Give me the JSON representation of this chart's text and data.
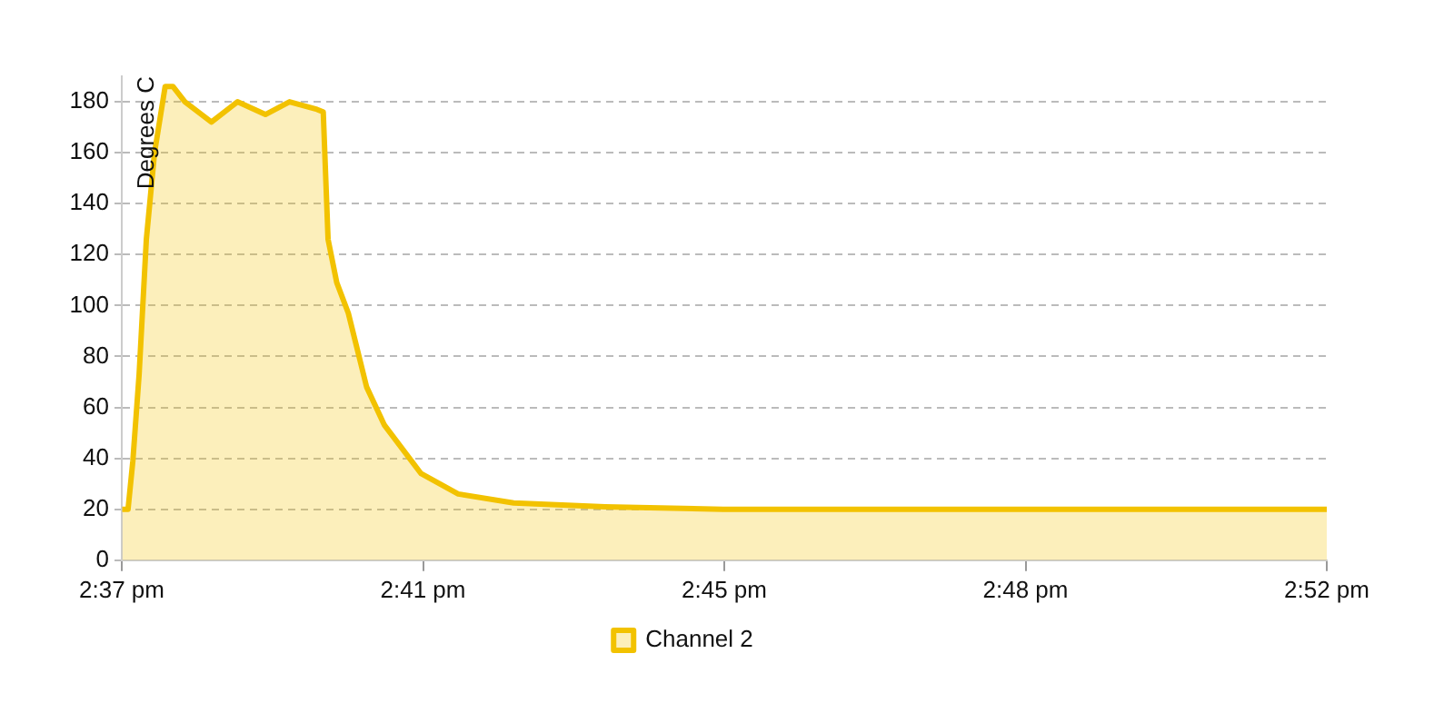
{
  "chart_data": {
    "type": "area",
    "ylabel": "Degrees C",
    "x": [
      14.6168,
      14.618,
      14.619,
      14.6203,
      14.6218,
      14.6235,
      14.6257,
      14.6273,
      14.6298,
      14.6353,
      14.6407,
      14.6465,
      14.6515,
      14.6572,
      14.6585,
      14.6595,
      14.6613,
      14.6637,
      14.6675,
      14.6712,
      14.6788,
      14.6865,
      14.698,
      14.717,
      14.7415,
      14.7833,
      14.8667
    ],
    "series": [
      {
        "name": "Channel 2",
        "color": "#f2c200",
        "values": [
          20,
          20,
          39,
          73,
          126,
          160,
          186,
          186,
          180,
          172,
          180,
          175,
          180,
          177,
          176,
          126,
          109,
          97,
          68,
          53,
          34,
          26,
          22.5,
          21,
          20,
          20,
          20
        ]
      }
    ],
    "xlim": [
      14.6167,
      14.8667
    ],
    "xticks": [
      {
        "value": 14.6167,
        "label": "2:37 pm"
      },
      {
        "value": 14.6792,
        "label": "2:41 pm"
      },
      {
        "value": 14.7417,
        "label": "2:45 pm"
      },
      {
        "value": 14.8042,
        "label": "2:48 pm"
      },
      {
        "value": 14.8667,
        "label": "2:52 pm"
      }
    ],
    "ylim": [
      0,
      190
    ],
    "yticks": [
      0,
      20,
      40,
      60,
      80,
      100,
      120,
      140,
      160,
      180
    ],
    "grid": "y",
    "legend": "bottom",
    "marker": "none",
    "line_style": "solid"
  }
}
